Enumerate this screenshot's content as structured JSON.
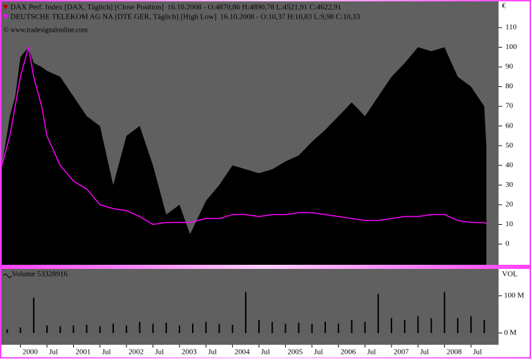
{
  "chart_data": {
    "type": "area-line",
    "copyright": "© www.tradesignalonline.com",
    "y_unit": "€",
    "xlim": [
      1999.64,
      2009.02
    ],
    "ylim": [
      -10.5,
      123.3
    ],
    "yticks": [
      0,
      10,
      20,
      30,
      40,
      50,
      60,
      70,
      80,
      90,
      100,
      110
    ],
    "xticks": [
      {
        "value": 2000,
        "label": "2000"
      },
      {
        "value": 2000.5,
        "label": "Jul"
      },
      {
        "value": 2001,
        "label": "2001"
      },
      {
        "value": 2001.5,
        "label": "Jul"
      },
      {
        "value": 2002,
        "label": "2002"
      },
      {
        "value": 2002.5,
        "label": "Jul"
      },
      {
        "value": 2003,
        "label": "2003"
      },
      {
        "value": 2003.5,
        "label": "Jul"
      },
      {
        "value": 2004,
        "label": "2004"
      },
      {
        "value": 2004.5,
        "label": "Jul"
      },
      {
        "value": 2005,
        "label": "2005"
      },
      {
        "value": 2005.5,
        "label": "Jul"
      },
      {
        "value": 2006,
        "label": "2006"
      },
      {
        "value": 2006.5,
        "label": "Jul"
      },
      {
        "value": 2007,
        "label": "2007"
      },
      {
        "value": 2007.5,
        "label": "Jul"
      },
      {
        "value": 2008,
        "label": "2008"
      },
      {
        "value": 2008.5,
        "label": "Jul"
      }
    ],
    "x": [
      1999.65,
      1999.8,
      1999.9,
      2000.0,
      2000.15,
      2000.25,
      2000.4,
      2000.5,
      2000.75,
      2001.0,
      2001.25,
      2001.5,
      2001.75,
      2002.0,
      2002.25,
      2002.5,
      2002.75,
      2003.0,
      2003.2,
      2003.5,
      2003.75,
      2004.0,
      2004.25,
      2004.5,
      2004.75,
      2005.0,
      2005.25,
      2005.5,
      2005.75,
      2006.0,
      2006.25,
      2006.5,
      2006.75,
      2007.0,
      2007.25,
      2007.5,
      2007.75,
      2008.0,
      2008.25,
      2008.5,
      2008.75,
      2008.79
    ],
    "series": [
      {
        "name": "DAX Perf. Index [DAX, Täglich] [Close Position]",
        "info": "16.10.2008 - O:4870,86 H:4890,78 L:4521,91 C:4622,91",
        "kind": "area",
        "color": "#000000",
        "legend_color": "#b00000",
        "values": [
          40,
          65,
          75,
          95,
          100,
          92,
          90,
          88,
          85,
          75,
          65,
          60,
          30,
          55,
          60,
          40,
          15,
          20,
          5,
          22,
          30,
          40,
          38,
          36,
          38,
          42,
          45,
          52,
          58,
          65,
          72,
          65,
          75,
          85,
          92,
          100,
          98,
          100,
          85,
          80,
          70,
          50
        ]
      },
      {
        "name": "DEUTSCHE TELEKOM AG NA [DTE GER, Täglich] [High Low]",
        "info": "16.10.2008 - O:10,37 H:10,83 L:9,98 C:10,33",
        "kind": "line",
        "color": "#ff00ff",
        "legend_color": "#ff00ff",
        "values": [
          40,
          55,
          70,
          85,
          100,
          85,
          70,
          55,
          40,
          32,
          28,
          20,
          18,
          17,
          14,
          10,
          11,
          11,
          11,
          13,
          13,
          15,
          15,
          14,
          15,
          15,
          16,
          16,
          15,
          14,
          13,
          12,
          12,
          13,
          14,
          14,
          15,
          15,
          12,
          11,
          11,
          10.3
        ]
      }
    ],
    "volume": {
      "title": "Volume 53328916",
      "axis_label": "VOL",
      "ylim": [
        -31.5,
        172
      ],
      "yticks": [
        {
          "value": 0,
          "label": "0 M"
        },
        {
          "value": 100,
          "label": "100 M"
        }
      ],
      "color": "#000000",
      "x": [
        1999.75,
        2000.0,
        2000.25,
        2000.5,
        2000.75,
        2001.0,
        2001.25,
        2001.5,
        2001.75,
        2002.0,
        2002.25,
        2002.5,
        2002.75,
        2003.0,
        2003.25,
        2003.5,
        2003.75,
        2004.0,
        2004.25,
        2004.5,
        2004.75,
        2005.0,
        2005.25,
        2005.5,
        2005.75,
        2006.0,
        2006.25,
        2006.5,
        2006.75,
        2007.0,
        2007.25,
        2007.5,
        2007.75,
        2008.0,
        2008.25,
        2008.5,
        2008.75
      ],
      "values": [
        10,
        15,
        95,
        20,
        18,
        20,
        22,
        18,
        25,
        20,
        30,
        25,
        28,
        20,
        25,
        30,
        25,
        22,
        110,
        35,
        30,
        25,
        28,
        25,
        30,
        25,
        35,
        30,
        105,
        40,
        35,
        45,
        40,
        110,
        40,
        45,
        35
      ]
    }
  }
}
